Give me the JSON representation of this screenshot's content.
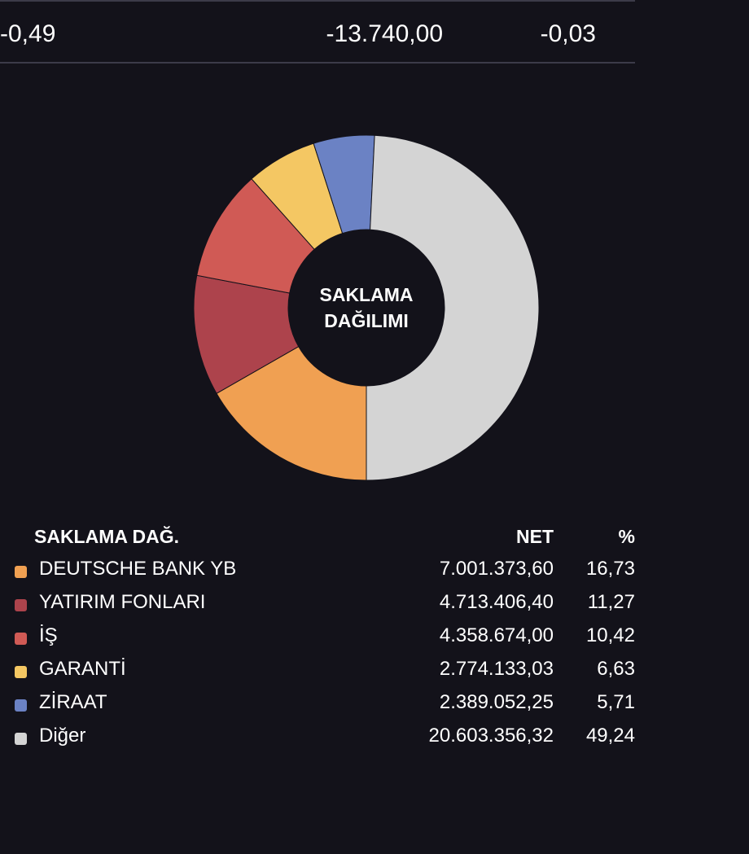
{
  "top_row": {
    "value_1": "-0,49",
    "value_2": "-13.740,00",
    "value_3": "-0,03"
  },
  "chart_data": {
    "type": "pie",
    "center_label_line1": "SAKLAMA",
    "center_label_line2": "DAĞILIMI",
    "slices": [
      {
        "name": "DEUTSCHE BANK YB",
        "value": 16.73,
        "color": "#f0a052"
      },
      {
        "name": "YATIRIM FONLARI",
        "value": 11.27,
        "color": "#ad434c"
      },
      {
        "name": "İŞ",
        "value": 10.42,
        "color": "#d05a55"
      },
      {
        "name": "GARANTİ",
        "value": 6.63,
        "color": "#f4c763"
      },
      {
        "name": "ZİRAAT",
        "value": 5.71,
        "color": "#6b82c4"
      },
      {
        "name": "Diğer",
        "value": 49.24,
        "color": "#d4d4d4"
      }
    ]
  },
  "legend": {
    "header_name": "SAKLAMA DAĞ.",
    "header_net": "NET",
    "header_pct": "%",
    "rows": [
      {
        "name": "DEUTSCHE BANK YB",
        "net": "7.001.373,60",
        "pct": "16,73",
        "color": "#f0a052"
      },
      {
        "name": "YATIRIM FONLARI",
        "net": "4.713.406,40",
        "pct": "11,27",
        "color": "#ad434c"
      },
      {
        "name": "İŞ",
        "net": "4.358.674,00",
        "pct": "10,42",
        "color": "#d05a55"
      },
      {
        "name": "GARANTİ",
        "net": "2.774.133,03",
        "pct": "6,63",
        "color": "#f4c763"
      },
      {
        "name": "ZİRAAT",
        "net": "2.389.052,25",
        "pct": "5,71",
        "color": "#6b82c4"
      },
      {
        "name": "Diğer",
        "net": "20.603.356,32",
        "pct": "49,24",
        "color": "#d4d4d4"
      }
    ]
  }
}
